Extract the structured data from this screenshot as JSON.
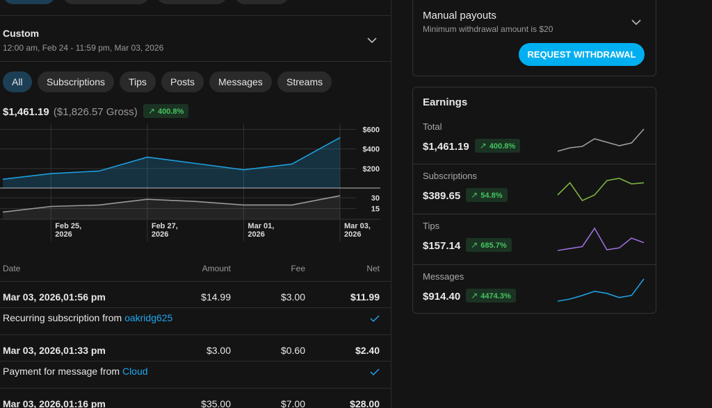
{
  "filter": {
    "title": "Custom",
    "range": "12:00 am, Feb 24 - 11:59 pm, Mar 03, 2026"
  },
  "tabs": [
    "All",
    "Subscriptions",
    "Tips",
    "Posts",
    "Messages",
    "Streams"
  ],
  "summary": {
    "net": "$1,461.19",
    "gross": "($1,826.57 Gross)",
    "change": "400.8%"
  },
  "chart_data": [
    {
      "type": "area",
      "values": [
        90,
        148,
        174,
        316,
        252,
        187,
        245,
        516
      ],
      "color": "#1e9fe0",
      "ylim": [
        0,
        660
      ],
      "yticks": [
        {
          "value": 200,
          "label": "$200"
        },
        {
          "value": 400,
          "label": "$400"
        },
        {
          "value": 600,
          "label": "$600"
        }
      ],
      "grid": true
    },
    {
      "type": "line",
      "categories": [
        null,
        "Feb 25, 2026",
        null,
        "Feb 27, 2026",
        null,
        "Mar 01, 2026",
        null,
        "Mar 03, 2026"
      ],
      "values": [
        10,
        18,
        20,
        28,
        25,
        20,
        20,
        33
      ],
      "color": "#9a9a9a",
      "ylim": [
        0,
        36
      ],
      "yticks": [
        15,
        30
      ],
      "grid": true
    }
  ],
  "table": {
    "columns": [
      "Date",
      "Amount",
      "Fee",
      "Net"
    ],
    "rows": [
      {
        "date": "Mar 03, 2026,01:56 pm",
        "amount": "$14.99",
        "fee": "$3.00",
        "net": "$11.99",
        "description": "Recurring subscription from",
        "from": "oakridg625"
      },
      {
        "date": "Mar 03, 2026,01:33 pm",
        "amount": "$3.00",
        "fee": "$0.60",
        "net": "$2.40",
        "description": "Payment for message from",
        "from": "Cloud"
      },
      {
        "date": "Mar 03, 2026,01:16 pm",
        "amount": "$35.00",
        "fee": "$7.00",
        "net": "$28.00"
      }
    ]
  },
  "payouts": {
    "title": "Manual payouts",
    "note": "Minimum withdrawal amount is $20",
    "button": "REQUEST WITHDRAWAL"
  },
  "earnings": {
    "title": "Earnings",
    "rows": [
      {
        "label": "Total",
        "amount": "$1,461.19",
        "change": "400.8%",
        "color": "#a0a0a0",
        "values": [
          82,
          87,
          89,
          100,
          95,
          90,
          94,
          114
        ]
      },
      {
        "label": "Subscriptions",
        "amount": "$389.65",
        "change": "54.8%",
        "color": "#7cb342",
        "values": [
          23,
          34,
          18,
          23,
          36,
          38,
          33,
          34
        ]
      },
      {
        "label": "Tips",
        "amount": "$157.14",
        "change": "685.7%",
        "color": "#9b6fd8",
        "values": [
          4,
          7,
          10,
          38,
          5,
          8,
          23,
          16
        ]
      },
      {
        "label": "Messages",
        "amount": "$914.40",
        "change": "4474.3%",
        "color": "#1e9fe0",
        "values": [
          2,
          6,
          13,
          21,
          17,
          9,
          13,
          45
        ]
      }
    ]
  }
}
